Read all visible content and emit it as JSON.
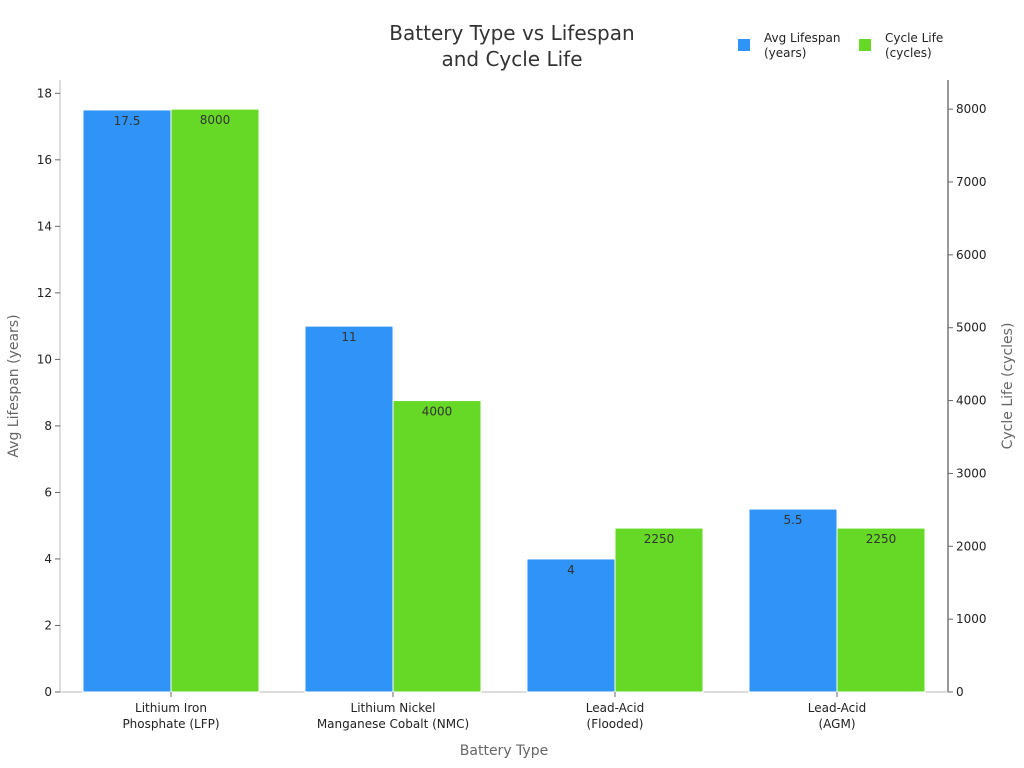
{
  "chart_data": {
    "type": "bar",
    "title": [
      "Battery Type vs Lifespan",
      "and Cycle Life"
    ],
    "xlabel": "Battery Type",
    "ylabel_left": "Avg Lifespan (years)",
    "ylabel_right": "Cycle Life (cycles)",
    "categories": [
      [
        "Lithium Iron",
        "Phosphate (LFP)"
      ],
      [
        "Lithium Nickel",
        "Manganese Cobalt (NMC)"
      ],
      [
        "Lead-Acid",
        "(Flooded)"
      ],
      [
        "Lead-Acid",
        "(AGM)"
      ]
    ],
    "series": [
      {
        "name": "Avg Lifespan (years)",
        "legend_lines": [
          "Avg Lifespan",
          "(years)"
        ],
        "axis": "left",
        "color": "#2f93f7",
        "values": [
          17.5,
          11,
          4,
          5.5
        ],
        "labels": [
          "17.5",
          "11",
          "4",
          "5.5"
        ]
      },
      {
        "name": "Cycle Life (cycles)",
        "legend_lines": [
          "Cycle Life",
          "(cycles)"
        ],
        "axis": "right",
        "color": "#66d926",
        "values": [
          8000,
          4000,
          2250,
          2250
        ],
        "labels": [
          "8000",
          "4000",
          "2250",
          "2250"
        ]
      }
    ],
    "ylim_left": [
      0,
      18.4
    ],
    "yticks_left": [
      0,
      2,
      4,
      6,
      8,
      10,
      12,
      14,
      16,
      18
    ],
    "ylim_right": [
      0,
      8400
    ],
    "yticks_right": [
      0,
      1000,
      2000,
      3000,
      4000,
      5000,
      6000,
      7000,
      8000
    ],
    "grid": false,
    "legend": "top-right"
  }
}
